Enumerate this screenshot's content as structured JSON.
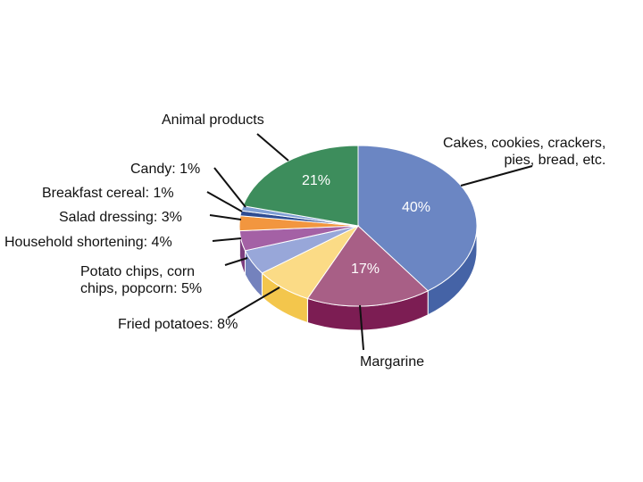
{
  "chart_data": {
    "type": "pie",
    "title": "",
    "legend": "none",
    "slices": [
      {
        "label": "Cakes, cookies, crackers, pies, bread, etc.",
        "value": 40,
        "value_label": "40%",
        "color": "#6b86c3",
        "side_color": "#4563a6"
      },
      {
        "label": "Margarine",
        "value": 17,
        "value_label": "17%",
        "color": "#a85f86",
        "side_color": "#7c1d53"
      },
      {
        "label": "Fried potatoes: 8%",
        "value": 8,
        "color": "#fbdb86",
        "side_color": "#f3c64c"
      },
      {
        "label": "Potato chips, corn chips, popcorn: 5%",
        "value": 5,
        "color": "#98a7d9",
        "side_color": "#7482bd"
      },
      {
        "label": "Household shortening: 4%",
        "value": 4,
        "color": "#a461a5",
        "side_color": "#7d3f80"
      },
      {
        "label": "Salad dressing: 3%",
        "value": 3,
        "color": "#f2963f",
        "side_color": "#c7701e"
      },
      {
        "label": "Breakfast cereal: 1%",
        "value": 1,
        "color": "#2e4c92",
        "side_color": "#1f3570"
      },
      {
        "label": "Candy: 1%",
        "value": 1,
        "color": "#7f9ed4",
        "side_color": "#5b7ab2"
      },
      {
        "label": "Animal products",
        "value": 21,
        "value_label": "21%",
        "color": "#3d8d5c",
        "side_color": "#2b6a43"
      }
    ]
  },
  "labels": {
    "cakes_line1": "Cakes, cookies, crackers,",
    "cakes_line2": "pies, bread, etc.",
    "margarine": "Margarine",
    "fried": "Fried potatoes: 8%",
    "chips_line1": "Potato chips, corn",
    "chips_line2": "chips, popcorn: 5%",
    "shortening": "Household shortening: 4%",
    "salad": "Salad dressing: 3%",
    "cereal": "Breakfast cereal: 1%",
    "candy": "Candy: 1%",
    "animal": "Animal products"
  },
  "percent_labels": {
    "cakes": "40%",
    "margarine": "17%",
    "animal": "21%"
  }
}
